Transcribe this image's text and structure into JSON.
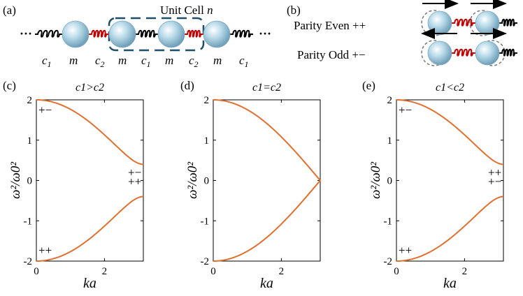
{
  "panel_labels": [
    "(a)",
    "(b)",
    "(c)",
    "(d)",
    "(e)"
  ],
  "chain": {
    "unit_cell_label": "Unit Cell",
    "unit_cell_index": "n",
    "ellipsis": "···",
    "labels": [
      "c1",
      "m",
      "c2",
      "m",
      "c1",
      "m",
      "c2",
      "m",
      "c1"
    ]
  },
  "modes": {
    "even_label": "Parity Even  ++",
    "odd_label": "Parity Odd  +−"
  },
  "plots": [
    {
      "title": "c1>c2",
      "top_branch_mode": "+−",
      "bottom_branch_mode": "++",
      "edge_upper_mode": "+−",
      "edge_lower_mode": "++"
    },
    {
      "title": "c1=c2"
    },
    {
      "title": "c1<c2",
      "top_branch_mode": "+−",
      "bottom_branch_mode": "++",
      "edge_upper_mode": "++",
      "edge_lower_mode": "+−"
    }
  ],
  "colors": {
    "curve": "#e07030",
    "spring_black": "#000000",
    "spring_red": "#c00000",
    "box": "#1f4e6b",
    "mass": "#a9cfe0"
  },
  "chart_data": [
    {
      "type": "line",
      "title": "c1>c2",
      "xlabel": "ka",
      "ylabel": "ω²/ω0²",
      "xlim": [
        0,
        3.14159
      ],
      "ylim": [
        -2,
        2
      ],
      "xticks": [
        0,
        2
      ],
      "yticks": [
        2,
        1,
        0,
        -1,
        -2
      ],
      "series": [
        {
          "x": [
            0,
            0.5,
            1.0,
            1.5,
            2.0,
            2.5,
            3.14159
          ],
          "values": [
            2.0,
            1.94,
            1.78,
            1.52,
            1.16,
            0.77,
            0.4
          ]
        },
        {
          "x": [
            0,
            0.5,
            1.0,
            1.5,
            2.0,
            2.5,
            3.14159
          ],
          "values": [
            -2.0,
            -1.94,
            -1.78,
            -1.52,
            -1.16,
            -0.77,
            -0.4
          ]
        }
      ]
    },
    {
      "type": "line",
      "title": "c1=c2",
      "xlabel": "ka",
      "ylabel": "ω²/ω0²",
      "xlim": [
        0,
        3.14159
      ],
      "ylim": [
        -2,
        2
      ],
      "xticks": [
        0,
        2
      ],
      "yticks": [
        2,
        1,
        0,
        -1,
        -2
      ],
      "series": [
        {
          "x": [
            0,
            0.5,
            1.0,
            1.5,
            2.0,
            2.5,
            3.14159
          ],
          "values": [
            2.0,
            1.94,
            1.76,
            1.46,
            1.08,
            0.63,
            0.0
          ]
        },
        {
          "x": [
            0,
            0.5,
            1.0,
            1.5,
            2.0,
            2.5,
            3.14159
          ],
          "values": [
            -2.0,
            -1.94,
            -1.76,
            -1.46,
            -1.08,
            -0.63,
            0.0
          ]
        }
      ]
    },
    {
      "type": "line",
      "title": "c1<c2",
      "xlabel": "ka",
      "ylabel": "ω²/ω0²",
      "xlim": [
        0,
        3.14159
      ],
      "ylim": [
        -2,
        2
      ],
      "xticks": [
        0,
        2
      ],
      "yticks": [
        2,
        1,
        0,
        -1,
        -2
      ],
      "series": [
        {
          "x": [
            0,
            0.5,
            1.0,
            1.5,
            2.0,
            2.5,
            3.14159
          ],
          "values": [
            2.0,
            1.94,
            1.78,
            1.52,
            1.16,
            0.77,
            0.4
          ]
        },
        {
          "x": [
            0,
            0.5,
            1.0,
            1.5,
            2.0,
            2.5,
            3.14159
          ],
          "values": [
            -2.0,
            -1.94,
            -1.78,
            -1.52,
            -1.16,
            -0.77,
            -0.4
          ]
        }
      ]
    }
  ]
}
